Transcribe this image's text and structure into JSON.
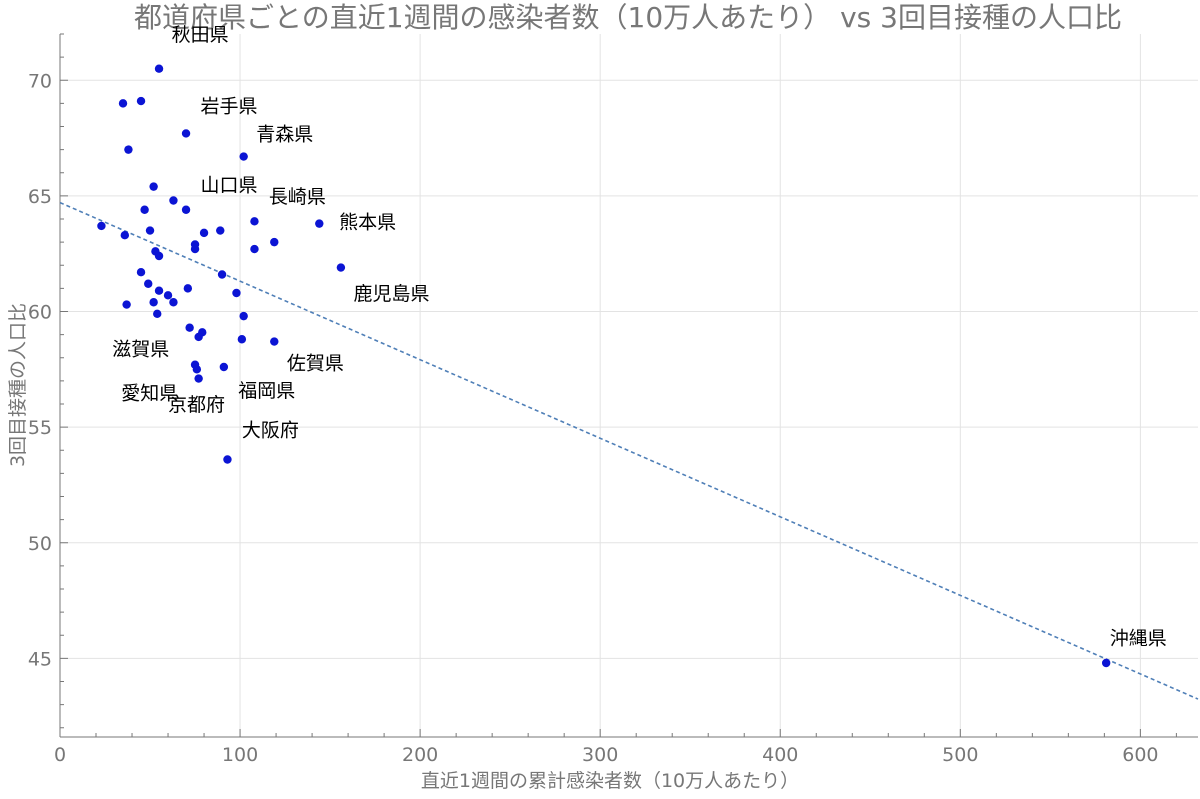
{
  "chart_data": {
    "type": "scatter",
    "title": "都道府県ごとの直近1週間の感染者数（10万人あたり） vs 3回目接種の人口比",
    "xlabel": "直近1週間の累計感染者数（10万人あたり）",
    "ylabel": "3回目接種の人口比",
    "xlim": [
      0,
      632
    ],
    "ylim": [
      41.6,
      72.0
    ],
    "xticks": [
      0,
      100,
      200,
      300,
      400,
      500,
      600
    ],
    "yticks": [
      45,
      50,
      55,
      60,
      65,
      70
    ],
    "grid": true,
    "colors": {
      "point": "#0b14d4",
      "trend": "#4f7fb7",
      "grid": "#e3e3e3",
      "axis": "#777777"
    },
    "points": [
      {
        "x": 55,
        "y": 70.5,
        "label": "秋田県"
      },
      {
        "x": 35,
        "y": 69.0,
        "label": ""
      },
      {
        "x": 45,
        "y": 69.1,
        "label": ""
      },
      {
        "x": 70,
        "y": 67.7,
        "label": "岩手県"
      },
      {
        "x": 102,
        "y": 66.7,
        "label": "青森県"
      },
      {
        "x": 38,
        "y": 67.0,
        "label": ""
      },
      {
        "x": 52,
        "y": 65.4,
        "label": ""
      },
      {
        "x": 63,
        "y": 64.8,
        "label": "山口県"
      },
      {
        "x": 47,
        "y": 64.4,
        "label": ""
      },
      {
        "x": 70,
        "y": 64.4,
        "label": ""
      },
      {
        "x": 108,
        "y": 63.9,
        "label": "長崎県"
      },
      {
        "x": 144,
        "y": 63.8,
        "label": "熊本県"
      },
      {
        "x": 23,
        "y": 63.7,
        "label": ""
      },
      {
        "x": 36,
        "y": 63.3,
        "label": ""
      },
      {
        "x": 50,
        "y": 63.5,
        "label": ""
      },
      {
        "x": 80,
        "y": 63.4,
        "label": ""
      },
      {
        "x": 89,
        "y": 63.5,
        "label": ""
      },
      {
        "x": 119,
        "y": 63.0,
        "label": ""
      },
      {
        "x": 75,
        "y": 62.9,
        "label": ""
      },
      {
        "x": 75,
        "y": 62.7,
        "label": ""
      },
      {
        "x": 108,
        "y": 62.7,
        "label": ""
      },
      {
        "x": 53,
        "y": 62.6,
        "label": ""
      },
      {
        "x": 55,
        "y": 62.4,
        "label": ""
      },
      {
        "x": 156,
        "y": 61.9,
        "label": "鹿児島県"
      },
      {
        "x": 45,
        "y": 61.7,
        "label": ""
      },
      {
        "x": 90,
        "y": 61.6,
        "label": ""
      },
      {
        "x": 49,
        "y": 61.2,
        "label": ""
      },
      {
        "x": 71,
        "y": 61.0,
        "label": ""
      },
      {
        "x": 55,
        "y": 60.9,
        "label": ""
      },
      {
        "x": 60,
        "y": 60.7,
        "label": ""
      },
      {
        "x": 98,
        "y": 60.8,
        "label": ""
      },
      {
        "x": 37,
        "y": 60.3,
        "label": ""
      },
      {
        "x": 52,
        "y": 60.4,
        "label": ""
      },
      {
        "x": 63,
        "y": 60.4,
        "label": ""
      },
      {
        "x": 54,
        "y": 59.9,
        "label": ""
      },
      {
        "x": 102,
        "y": 59.8,
        "label": ""
      },
      {
        "x": 72,
        "y": 59.3,
        "label": ""
      },
      {
        "x": 79,
        "y": 59.1,
        "label": ""
      },
      {
        "x": 77,
        "y": 58.9,
        "label": ""
      },
      {
        "x": 101,
        "y": 58.8,
        "label": ""
      },
      {
        "x": 119,
        "y": 58.7,
        "label": "佐賀県"
      },
      {
        "x": 75,
        "y": 57.7,
        "label": "滋賀県"
      },
      {
        "x": 76,
        "y": 57.5,
        "label": "愛知県"
      },
      {
        "x": 91,
        "y": 57.6,
        "label": "福岡県"
      },
      {
        "x": 77,
        "y": 57.1,
        "label": "京都府"
      },
      {
        "x": 93,
        "y": 53.6,
        "label": "大阪府"
      },
      {
        "x": 581,
        "y": 44.8,
        "label": "沖縄県"
      }
    ],
    "trendline": {
      "x": [
        0,
        632
      ],
      "y": [
        64.71,
        43.24
      ]
    },
    "annotations": [
      {
        "text": "秋田県",
        "x": 62,
        "y": 71.7
      },
      {
        "text": "岩手県",
        "x": 78,
        "y": 68.6
      },
      {
        "text": "青森県",
        "x": 109,
        "y": 67.4
      },
      {
        "text": "山口県",
        "x": 78,
        "y": 65.2
      },
      {
        "text": "長崎県",
        "x": 116,
        "y": 64.7
      },
      {
        "text": "熊本県",
        "x": 155,
        "y": 63.6
      },
      {
        "text": "鹿児島県",
        "x": 163,
        "y": 60.5
      },
      {
        "text": "滋賀県",
        "x": 29,
        "y": 58.1
      },
      {
        "text": "佐賀県",
        "x": 126,
        "y": 57.5
      },
      {
        "text": "愛知県",
        "x": 34,
        "y": 56.2
      },
      {
        "text": "福岡県",
        "x": 99,
        "y": 56.3
      },
      {
        "text": "京都府",
        "x": 60,
        "y": 55.7
      },
      {
        "text": "大阪府",
        "x": 101,
        "y": 54.6
      },
      {
        "text": "沖縄県",
        "x": 583,
        "y": 45.6
      }
    ]
  }
}
